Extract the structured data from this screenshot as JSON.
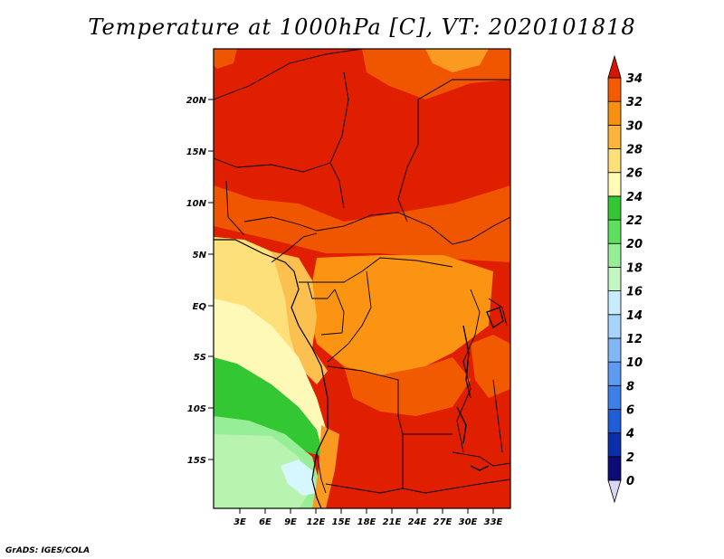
{
  "title": "Temperature at 1000hPa [C], VT: 2020101818",
  "credit": "GrADS: IGES/COLA",
  "map": {
    "lon_ticks": [
      "3E",
      "6E",
      "9E",
      "12E",
      "15E",
      "18E",
      "21E",
      "24E",
      "27E",
      "30E",
      "33E"
    ],
    "lat_ticks": [
      "20N",
      "15N",
      "10N",
      "5N",
      "EQ",
      "5S",
      "10S",
      "15S"
    ]
  },
  "colorbar": {
    "levels": [
      "0",
      "2",
      "4",
      "6",
      "8",
      "10",
      "12",
      "14",
      "16",
      "18",
      "20",
      "22",
      "24",
      "26",
      "28",
      "30",
      "32",
      "34"
    ],
    "colors": [
      "#0c0c78",
      "#0b2fa8",
      "#1f5cd6",
      "#3c7fe8",
      "#5e9af0",
      "#80b8f6",
      "#a6d4fb",
      "#c8ecff",
      "#c4f6c4",
      "#96ee96",
      "#5ee05e",
      "#33c833",
      "#fffcb8",
      "#fde07a",
      "#fcb43a",
      "#fa9010",
      "#f45a00",
      "#e82800",
      "#d81500"
    ]
  }
}
